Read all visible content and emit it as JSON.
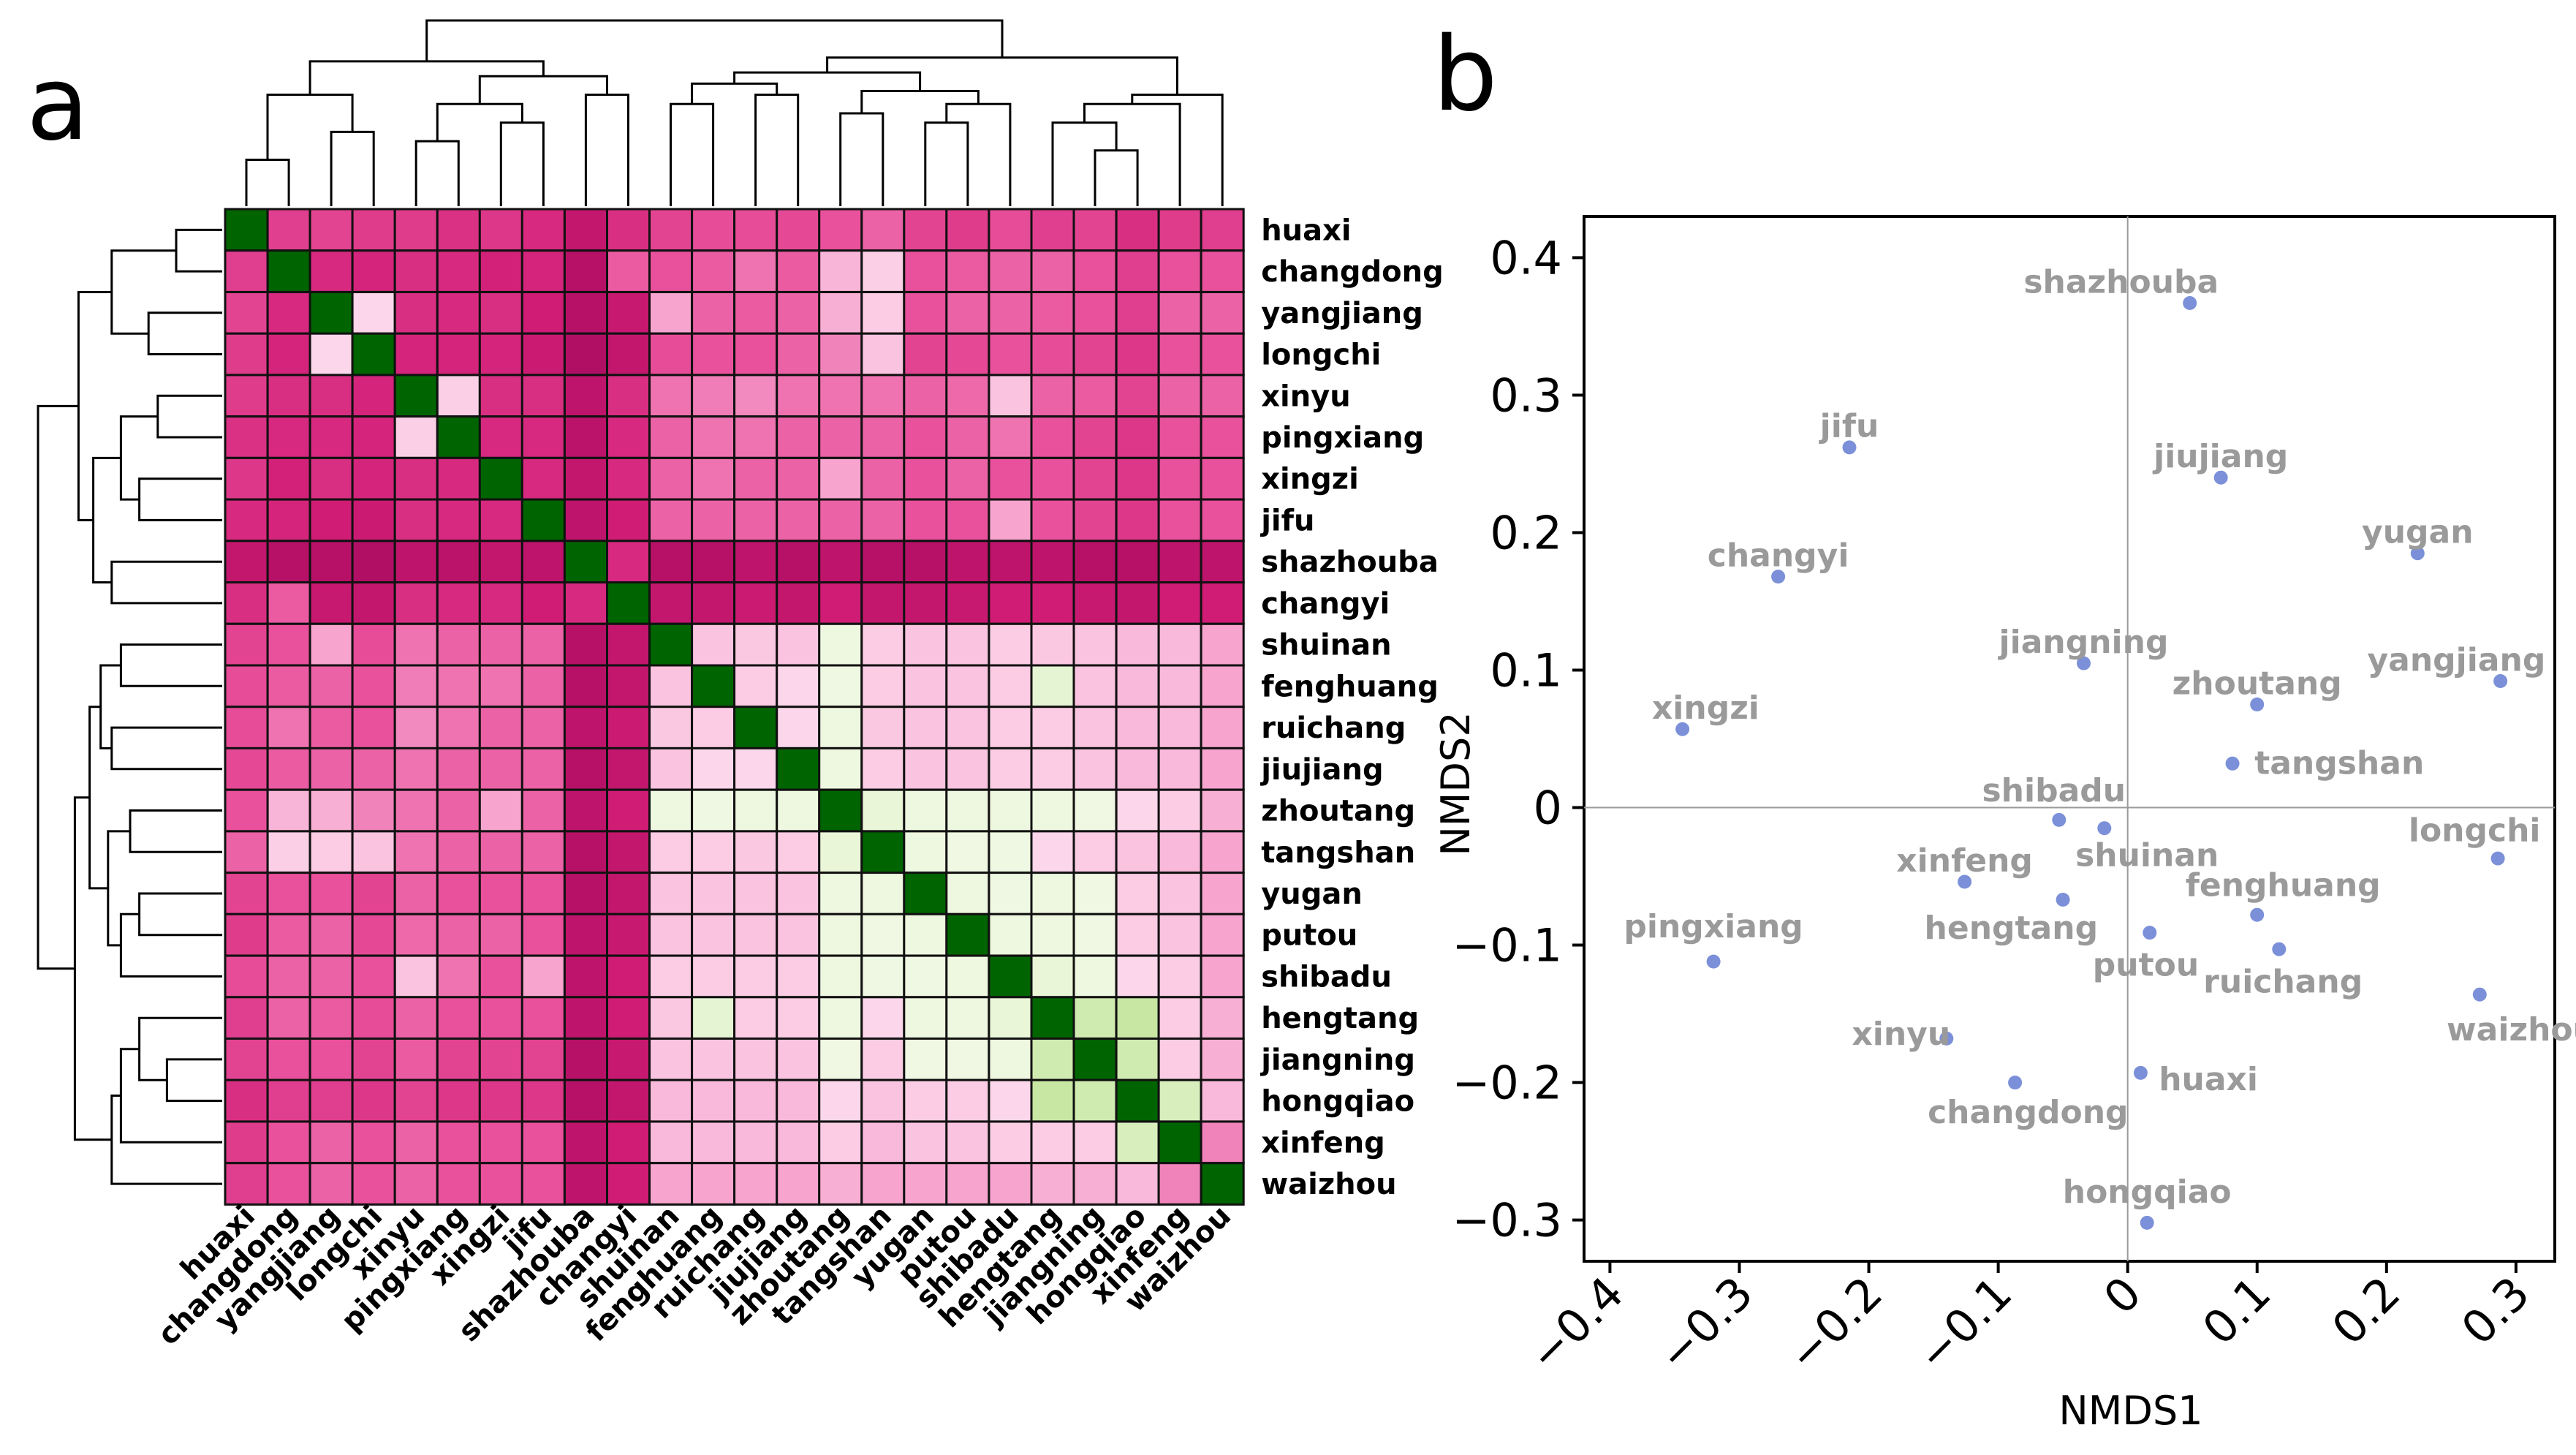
{
  "panels": {
    "a": "a",
    "b": "b"
  },
  "colors": {
    "diagonal": "#006400",
    "point": "#7b90d8",
    "point_label": "#9a9a9a",
    "cell_border": "#111111",
    "scale_low": "#8e0152",
    "scale_mid": "#f7f7f7",
    "scale_high": "#276419"
  },
  "chart_data": [
    {
      "type": "heatmap",
      "panel": "a",
      "labels": [
        "huaxi",
        "changdong",
        "yangjiang",
        "longchi",
        "xinyu",
        "pingxiang",
        "xingzi",
        "jifu",
        "shazhouba",
        "changyi",
        "shuinan",
        "fenghuang",
        "ruichang",
        "jiujiang",
        "zhoutang",
        "tangshan",
        "yugan",
        "putou",
        "shibadu",
        "hengtang",
        "jiangning",
        "hongqiao",
        "xinfeng",
        "waizhou"
      ],
      "value_note": "cell colour level: -1 = darkest magenta, 0 = white, +1 = dark green (diagonal)",
      "matrix": [
        [
          1,
          -0.62,
          -0.6,
          -0.63,
          -0.63,
          -0.67,
          -0.65,
          -0.7,
          -0.8,
          -0.68,
          -0.6,
          -0.57,
          -0.57,
          -0.58,
          -0.55,
          -0.5,
          -0.6,
          -0.63,
          -0.57,
          -0.62,
          -0.6,
          -0.68,
          -0.63,
          -0.62
        ],
        [
          -0.62,
          1,
          -0.7,
          -0.72,
          -0.68,
          -0.7,
          -0.73,
          -0.72,
          -0.85,
          -0.52,
          -0.55,
          -0.52,
          -0.45,
          -0.52,
          -0.22,
          -0.08,
          -0.55,
          -0.52,
          -0.5,
          -0.5,
          -0.55,
          -0.62,
          -0.55,
          -0.55
        ],
        [
          -0.6,
          -0.7,
          1,
          -0.05,
          -0.68,
          -0.7,
          -0.68,
          -0.75,
          -0.85,
          -0.78,
          -0.3,
          -0.5,
          -0.52,
          -0.5,
          -0.25,
          -0.1,
          -0.55,
          -0.5,
          -0.5,
          -0.52,
          -0.55,
          -0.62,
          -0.5,
          -0.5
        ],
        [
          -0.63,
          -0.72,
          -0.05,
          1,
          -0.72,
          -0.72,
          -0.72,
          -0.77,
          -0.87,
          -0.8,
          -0.57,
          -0.55,
          -0.55,
          -0.5,
          -0.4,
          -0.15,
          -0.6,
          -0.58,
          -0.55,
          -0.57,
          -0.6,
          -0.65,
          -0.55,
          -0.55
        ],
        [
          -0.63,
          -0.68,
          -0.68,
          -0.72,
          1,
          -0.08,
          -0.68,
          -0.68,
          -0.82,
          -0.68,
          -0.45,
          -0.42,
          -0.38,
          -0.45,
          -0.45,
          -0.45,
          -0.5,
          -0.48,
          -0.15,
          -0.5,
          -0.52,
          -0.6,
          -0.5,
          -0.5
        ],
        [
          -0.67,
          -0.7,
          -0.7,
          -0.72,
          -0.08,
          1,
          -0.7,
          -0.7,
          -0.83,
          -0.7,
          -0.5,
          -0.45,
          -0.45,
          -0.5,
          -0.5,
          -0.5,
          -0.55,
          -0.5,
          -0.45,
          -0.55,
          -0.6,
          -0.65,
          -0.55,
          -0.55
        ],
        [
          -0.65,
          -0.73,
          -0.68,
          -0.72,
          -0.68,
          -0.7,
          1,
          -0.7,
          -0.8,
          -0.7,
          -0.5,
          -0.45,
          -0.5,
          -0.5,
          -0.3,
          -0.5,
          -0.55,
          -0.5,
          -0.55,
          -0.55,
          -0.6,
          -0.65,
          -0.55,
          -0.55
        ],
        [
          -0.7,
          -0.72,
          -0.75,
          -0.77,
          -0.68,
          -0.7,
          -0.7,
          1,
          -0.82,
          -0.75,
          -0.5,
          -0.5,
          -0.5,
          -0.5,
          -0.5,
          -0.5,
          -0.55,
          -0.55,
          -0.3,
          -0.55,
          -0.6,
          -0.65,
          -0.55,
          -0.55
        ],
        [
          -0.8,
          -0.85,
          -0.85,
          -0.87,
          -0.82,
          -0.83,
          -0.8,
          -0.82,
          1,
          -0.7,
          -0.85,
          -0.85,
          -0.82,
          -0.85,
          -0.82,
          -0.85,
          -0.85,
          -0.82,
          -0.82,
          -0.82,
          -0.85,
          -0.85,
          -0.82,
          -0.82
        ],
        [
          -0.68,
          -0.52,
          -0.78,
          -0.8,
          -0.68,
          -0.7,
          -0.7,
          -0.75,
          -0.7,
          1,
          -0.8,
          -0.8,
          -0.77,
          -0.8,
          -0.75,
          -0.8,
          -0.8,
          -0.78,
          -0.75,
          -0.75,
          -0.78,
          -0.8,
          -0.75,
          -0.75
        ],
        [
          -0.6,
          -0.55,
          -0.3,
          -0.57,
          -0.45,
          -0.5,
          -0.5,
          -0.5,
          -0.85,
          -0.8,
          1,
          -0.15,
          -0.12,
          -0.15,
          0.05,
          -0.1,
          -0.15,
          -0.15,
          -0.1,
          -0.12,
          -0.15,
          -0.2,
          -0.2,
          -0.3
        ],
        [
          -0.57,
          -0.52,
          -0.5,
          -0.55,
          -0.42,
          -0.45,
          -0.45,
          -0.5,
          -0.85,
          -0.8,
          -0.15,
          1,
          -0.1,
          -0.05,
          0.03,
          -0.1,
          -0.15,
          -0.15,
          -0.1,
          0.15,
          -0.15,
          -0.2,
          -0.2,
          -0.3
        ],
        [
          -0.57,
          -0.45,
          -0.52,
          -0.55,
          -0.38,
          -0.45,
          -0.5,
          -0.5,
          -0.82,
          -0.77,
          -0.12,
          -0.1,
          1,
          -0.05,
          0.05,
          -0.12,
          -0.15,
          -0.15,
          -0.1,
          -0.1,
          -0.15,
          -0.2,
          -0.2,
          -0.3
        ],
        [
          -0.58,
          -0.52,
          -0.5,
          -0.5,
          -0.45,
          -0.5,
          -0.5,
          -0.5,
          -0.85,
          -0.8,
          -0.15,
          -0.05,
          -0.05,
          1,
          0.05,
          -0.1,
          -0.15,
          -0.15,
          -0.1,
          -0.1,
          -0.15,
          -0.2,
          -0.2,
          -0.3
        ],
        [
          -0.55,
          -0.22,
          -0.25,
          -0.4,
          -0.45,
          -0.5,
          -0.3,
          -0.5,
          -0.82,
          -0.75,
          0.05,
          0.03,
          0.05,
          0.05,
          1,
          0.1,
          0.05,
          0.05,
          0.05,
          0.05,
          0.02,
          -0.05,
          -0.1,
          -0.25
        ],
        [
          -0.5,
          -0.08,
          -0.1,
          -0.15,
          -0.45,
          -0.5,
          -0.5,
          -0.5,
          -0.85,
          -0.8,
          -0.1,
          -0.1,
          -0.12,
          -0.1,
          0.1,
          1,
          0.05,
          0.02,
          0.03,
          -0.05,
          -0.1,
          -0.15,
          -0.2,
          -0.3
        ],
        [
          -0.6,
          -0.55,
          -0.55,
          -0.6,
          -0.5,
          -0.55,
          -0.55,
          -0.55,
          -0.85,
          -0.8,
          -0.15,
          -0.15,
          -0.15,
          -0.15,
          0.05,
          0.05,
          1,
          0.05,
          0.03,
          0.05,
          0.02,
          -0.1,
          -0.15,
          -0.3
        ],
        [
          -0.63,
          -0.52,
          -0.5,
          -0.58,
          -0.48,
          -0.5,
          -0.5,
          -0.55,
          -0.82,
          -0.78,
          -0.15,
          -0.15,
          -0.15,
          -0.15,
          0.05,
          0.02,
          0.05,
          1,
          0.05,
          0.05,
          0.02,
          -0.1,
          -0.15,
          -0.3
        ],
        [
          -0.57,
          -0.5,
          -0.5,
          -0.55,
          -0.15,
          -0.45,
          -0.55,
          -0.3,
          -0.82,
          -0.75,
          -0.1,
          -0.1,
          -0.1,
          -0.1,
          0.05,
          0.03,
          0.03,
          0.05,
          1,
          0.1,
          0.05,
          -0.05,
          -0.1,
          -0.3
        ],
        [
          -0.62,
          -0.5,
          -0.52,
          -0.57,
          -0.5,
          -0.55,
          -0.55,
          -0.55,
          -0.82,
          -0.75,
          -0.12,
          0.15,
          -0.1,
          -0.1,
          0.05,
          -0.05,
          0.05,
          0.05,
          0.1,
          1,
          0.35,
          0.4,
          -0.1,
          -0.25
        ],
        [
          -0.6,
          -0.55,
          -0.55,
          -0.6,
          -0.52,
          -0.6,
          -0.6,
          -0.6,
          -0.85,
          -0.78,
          -0.15,
          -0.15,
          -0.15,
          -0.15,
          0.02,
          -0.1,
          0.02,
          0.02,
          0.05,
          0.35,
          1,
          0.35,
          -0.1,
          -0.25
        ],
        [
          -0.68,
          -0.62,
          -0.62,
          -0.65,
          -0.6,
          -0.65,
          -0.65,
          -0.65,
          -0.85,
          -0.8,
          -0.2,
          -0.2,
          -0.2,
          -0.2,
          -0.05,
          -0.15,
          -0.1,
          -0.1,
          -0.05,
          0.4,
          0.35,
          1,
          0.3,
          -0.2
        ],
        [
          -0.63,
          -0.55,
          -0.5,
          -0.55,
          -0.5,
          -0.55,
          -0.55,
          -0.55,
          -0.82,
          -0.75,
          -0.2,
          -0.2,
          -0.2,
          -0.2,
          -0.1,
          -0.2,
          -0.15,
          -0.15,
          -0.1,
          -0.1,
          -0.1,
          0.3,
          1,
          -0.4
        ],
        [
          -0.62,
          -0.55,
          -0.5,
          -0.55,
          -0.5,
          -0.55,
          -0.55,
          -0.55,
          -0.82,
          -0.75,
          -0.3,
          -0.3,
          -0.3,
          -0.3,
          -0.25,
          -0.3,
          -0.3,
          -0.3,
          -0.3,
          -0.25,
          -0.25,
          -0.2,
          -0.4,
          1
        ]
      ],
      "dendrogram_merge_order": [
        [
          "huaxi",
          "changdong"
        ],
        [
          "yangjiang",
          "longchi"
        ],
        [
          "xinyu",
          "pingxiang"
        ],
        [
          "xingzi",
          "jifu"
        ],
        [
          "shazhouba",
          "changyi"
        ],
        [
          "shuinan",
          "fenghuang"
        ],
        [
          "ruichang",
          "jiujiang"
        ],
        [
          "zhoutang",
          "tangshan"
        ],
        [
          "yugan",
          "putou"
        ],
        [
          "jiangning",
          "hongqiao"
        ],
        [
          "xinfeng",
          "waizhou"
        ]
      ]
    },
    {
      "type": "scatter",
      "panel": "b",
      "xlabel": "NMDS1",
      "ylabel": "NMDS2",
      "xlim": [
        -0.42,
        0.33
      ],
      "ylim": [
        -0.33,
        0.43
      ],
      "xticks": [
        -0.4,
        -0.3,
        -0.2,
        -0.1,
        0,
        0.1,
        0.2,
        0.3
      ],
      "xtick_labels": [
        "−0.4",
        "−0.3",
        "−0.2",
        "−0.1",
        "0",
        "0.1",
        "0.2",
        "0.3"
      ],
      "yticks": [
        0.4,
        0.3,
        0.2,
        0.1,
        0,
        -0.1,
        -0.2,
        -0.3
      ],
      "ytick_labels": [
        "0.4",
        "0.3",
        "0.2",
        "0.1",
        "0",
        "−0.1",
        "−0.2",
        "−0.3"
      ],
      "zero_lines": true,
      "points": [
        {
          "label": "shazhouba",
          "x": 0.048,
          "y": 0.367,
          "lx": -0.005,
          "ly": 0.382,
          "anchor": "middle"
        },
        {
          "label": "jifu",
          "x": -0.215,
          "y": 0.262,
          "lx": -0.215,
          "ly": 0.277,
          "anchor": "middle"
        },
        {
          "label": "jiujiang",
          "x": 0.072,
          "y": 0.24,
          "lx": 0.072,
          "ly": 0.255,
          "anchor": "middle"
        },
        {
          "label": "yugan",
          "x": 0.224,
          "y": 0.185,
          "lx": 0.224,
          "ly": 0.2,
          "anchor": "middle"
        },
        {
          "label": "changyi",
          "x": -0.27,
          "y": 0.168,
          "lx": -0.27,
          "ly": 0.183,
          "anchor": "middle"
        },
        {
          "label": "jiangning",
          "x": -0.034,
          "y": 0.105,
          "lx": -0.034,
          "ly": 0.12,
          "anchor": "middle"
        },
        {
          "label": "yangjiang",
          "x": 0.288,
          "y": 0.092,
          "lx": 0.254,
          "ly": 0.107,
          "anchor": "middle"
        },
        {
          "label": "zhoutang",
          "x": 0.1,
          "y": 0.075,
          "lx": 0.1,
          "ly": 0.09,
          "anchor": "middle"
        },
        {
          "label": "xingzi",
          "x": -0.344,
          "y": 0.057,
          "lx": -0.326,
          "ly": 0.072,
          "anchor": "middle"
        },
        {
          "label": "tangshan",
          "x": 0.081,
          "y": 0.032,
          "lx": 0.098,
          "ly": 0.032,
          "anchor": "start"
        },
        {
          "label": "shibadu",
          "x": -0.053,
          "y": -0.009,
          "lx": -0.057,
          "ly": 0.012,
          "anchor": "middle"
        },
        {
          "label": "shuinan",
          "x": -0.018,
          "y": -0.015,
          "lx": 0.015,
          "ly": -0.035,
          "anchor": "middle"
        },
        {
          "label": "longchi",
          "x": 0.286,
          "y": -0.037,
          "lx": 0.268,
          "ly": -0.017,
          "anchor": "middle"
        },
        {
          "label": "xinfeng",
          "x": -0.126,
          "y": -0.054,
          "lx": -0.126,
          "ly": -0.039,
          "anchor": "middle"
        },
        {
          "label": "fenghuang",
          "x": 0.1,
          "y": -0.078,
          "lx": 0.12,
          "ly": -0.057,
          "anchor": "middle"
        },
        {
          "label": "hengtang",
          "x": -0.05,
          "y": -0.067,
          "lx": -0.09,
          "ly": -0.088,
          "anchor": "middle"
        },
        {
          "label": "pingxiang",
          "x": -0.32,
          "y": -0.112,
          "lx": -0.32,
          "ly": -0.087,
          "anchor": "middle"
        },
        {
          "label": "putou",
          "x": 0.017,
          "y": -0.091,
          "lx": 0.014,
          "ly": -0.115,
          "anchor": "middle"
        },
        {
          "label": "ruichang",
          "x": 0.117,
          "y": -0.103,
          "lx": 0.12,
          "ly": -0.127,
          "anchor": "middle"
        },
        {
          "label": "waizhou",
          "x": 0.272,
          "y": -0.136,
          "lx": 0.304,
          "ly": -0.162,
          "anchor": "middle"
        },
        {
          "label": "xinyu",
          "x": -0.14,
          "y": -0.168,
          "lx": -0.175,
          "ly": -0.165,
          "anchor": "middle"
        },
        {
          "label": "huaxi",
          "x": 0.01,
          "y": -0.193,
          "lx": 0.024,
          "ly": -0.198,
          "anchor": "start"
        },
        {
          "label": "changdong",
          "x": -0.087,
          "y": -0.2,
          "lx": -0.077,
          "ly": -0.222,
          "anchor": "middle"
        },
        {
          "label": "hongqiao",
          "x": 0.015,
          "y": -0.302,
          "lx": 0.015,
          "ly": -0.28,
          "anchor": "middle"
        }
      ]
    }
  ]
}
